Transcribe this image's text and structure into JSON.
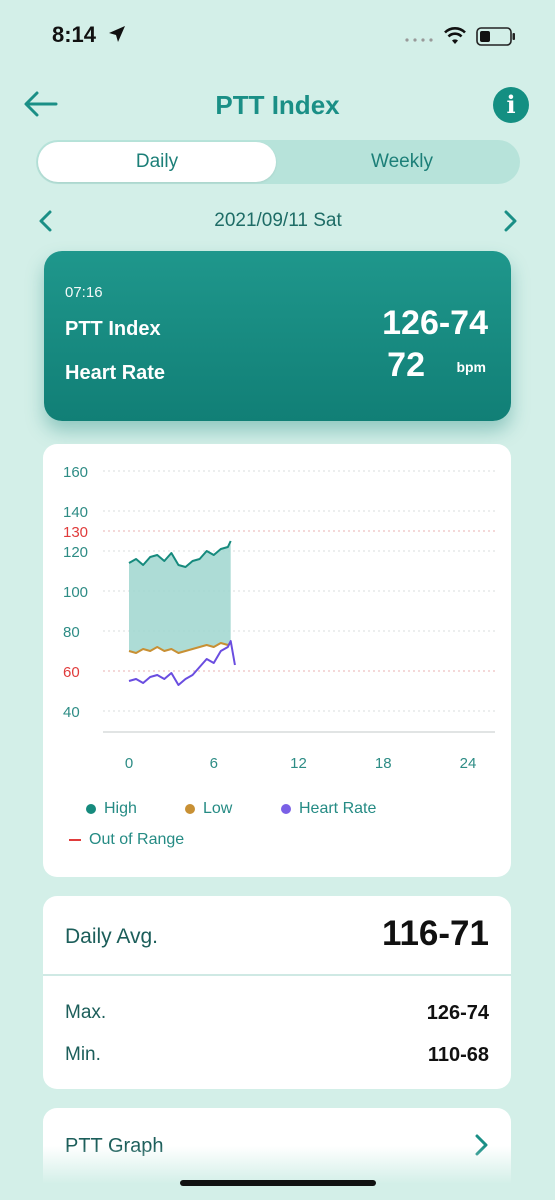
{
  "status_bar": {
    "time": "8:14"
  },
  "header": {
    "title": "PTT Index",
    "info_label": "i"
  },
  "tabs": [
    {
      "label": "Daily",
      "selected": true
    },
    {
      "label": "Weekly",
      "selected": false
    }
  ],
  "date_nav": {
    "date": "2021/09/11 Sat"
  },
  "summary": {
    "time": "07:16",
    "ptt_label": "PTT Index",
    "ptt_value": "126-74",
    "hr_label": "Heart Rate",
    "hr_value": "72",
    "hr_unit": "bpm"
  },
  "chart_data": {
    "type": "line",
    "x_ticks": [
      "0",
      "6",
      "12",
      "18",
      "24"
    ],
    "y_ticks": [
      "160",
      "140",
      "120",
      "100",
      "80",
      "60",
      "40"
    ],
    "xlim": [
      0,
      24
    ],
    "ylim": [
      30,
      160
    ],
    "threshold_lines": [
      {
        "label": "130",
        "value": 130,
        "color": "#e03b3b"
      },
      {
        "label": "60",
        "value": 60,
        "color": "#e03b3b"
      }
    ],
    "series": [
      {
        "name": "High",
        "color": "#168a7d",
        "x": [
          0,
          0.5,
          1,
          1.5,
          2,
          2.5,
          3,
          3.5,
          4,
          4.5,
          5,
          5.5,
          6,
          6.5,
          7,
          7.2
        ],
        "values": [
          114,
          116,
          113,
          117,
          118,
          115,
          119,
          113,
          112,
          115,
          116,
          120,
          118,
          121,
          122,
          125
        ]
      },
      {
        "name": "Low",
        "color": "#c89034",
        "x": [
          0,
          0.5,
          1,
          1.5,
          2,
          2.5,
          3,
          3.5,
          4,
          4.5,
          5,
          5.5,
          6,
          6.5,
          7,
          7.2
        ],
        "values": [
          70,
          69,
          71,
          70,
          72,
          70,
          71,
          69,
          70,
          71,
          72,
          73,
          72,
          74,
          73,
          74
        ]
      },
      {
        "name": "Heart Rate",
        "color": "#6a4de0",
        "x": [
          0,
          0.5,
          1,
          1.5,
          2,
          2.5,
          3,
          3.5,
          4,
          4.5,
          5,
          5.5,
          6,
          6.5,
          7,
          7.2,
          7.5
        ],
        "values": [
          55,
          56,
          54,
          57,
          58,
          56,
          59,
          53,
          56,
          58,
          62,
          66,
          64,
          70,
          72,
          75,
          63
        ]
      }
    ],
    "legend": [
      {
        "label": "High",
        "color": "#168a7d"
      },
      {
        "label": "Low",
        "color": "#c89034"
      },
      {
        "label": "Heart Rate",
        "color": "#7a60e6"
      },
      {
        "label": "Out of Range",
        "color": "#e03b3b"
      }
    ],
    "grid": true
  },
  "stats": {
    "avg_label": "Daily Avg.",
    "avg_value": "116-71",
    "max_label": "Max.",
    "max_value": "126-74",
    "min_label": "Min.",
    "min_value": "110-68"
  },
  "ptt_graph": {
    "label": "PTT Graph"
  },
  "colors": {
    "accent": "#1a8f86",
    "background": "#d3efe8",
    "out_of_range": "#e03b3b"
  }
}
